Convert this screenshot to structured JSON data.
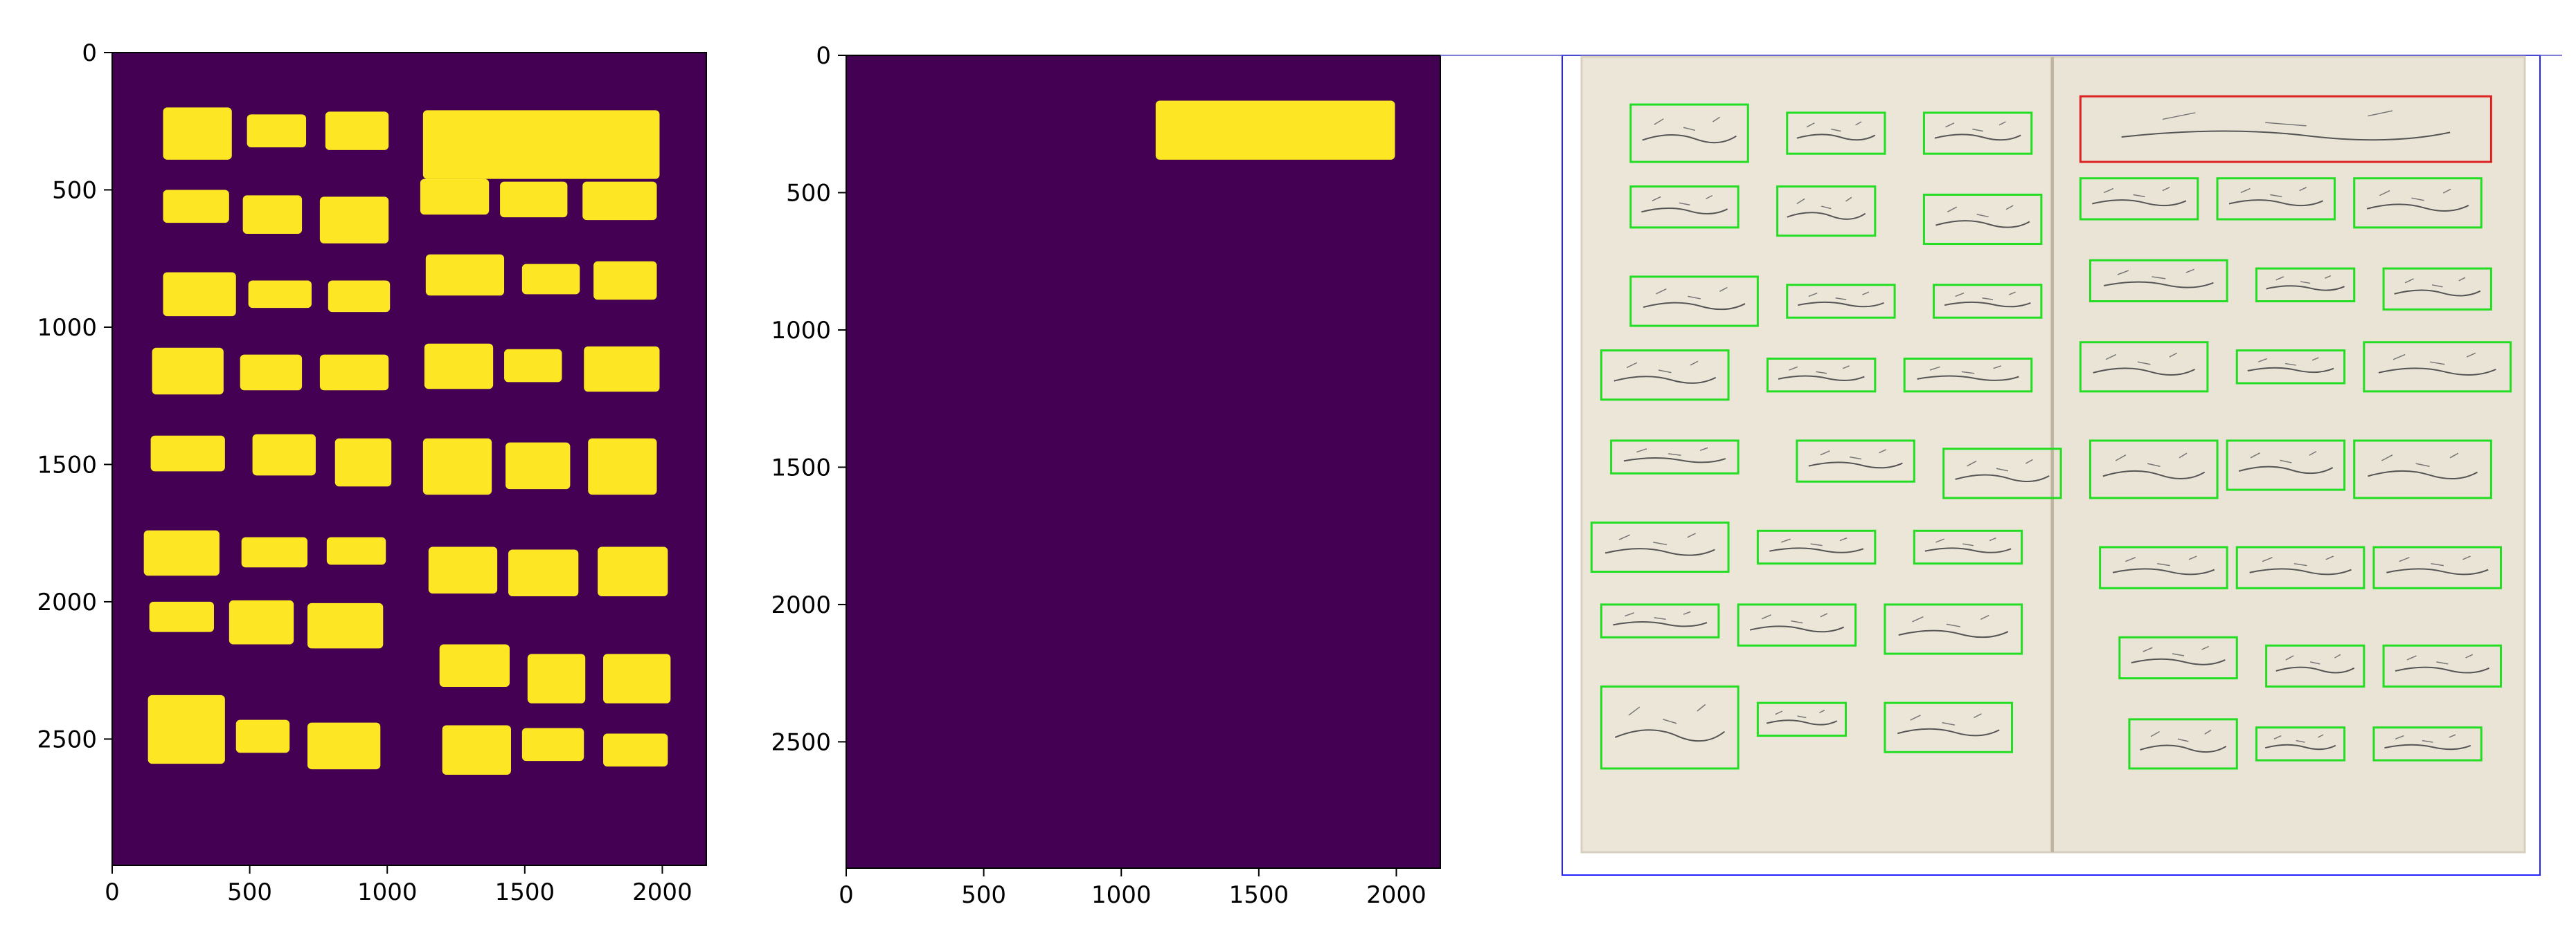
{
  "chart_data": [
    {
      "type": "heatmap",
      "title": "",
      "xlabel": "",
      "ylabel": "",
      "xlim": [
        0,
        2160
      ],
      "ylim": [
        2960,
        0
      ],
      "xticks": [
        0,
        500,
        1000,
        1500,
        2000
      ],
      "yticks": [
        0,
        500,
        1000,
        1500,
        2000,
        2500
      ],
      "xtick_labels": [
        "0",
        "500",
        "1000",
        "1500",
        "2000"
      ],
      "ytick_labels": [
        "0",
        "500",
        "1000",
        "1500",
        "2000",
        "2500"
      ],
      "background_color": "#440154",
      "mask_color": "#fde725",
      "regions": [
        [
          185,
          200,
          435,
          390
        ],
        [
          490,
          225,
          705,
          345
        ],
        [
          775,
          215,
          1005,
          355
        ],
        [
          185,
          500,
          425,
          620
        ],
        [
          475,
          520,
          690,
          660
        ],
        [
          755,
          525,
          1005,
          695
        ],
        [
          1120,
          460,
          1370,
          590
        ],
        [
          1410,
          470,
          1655,
          600
        ],
        [
          1710,
          470,
          1980,
          610
        ],
        [
          185,
          800,
          450,
          960
        ],
        [
          495,
          830,
          725,
          930
        ],
        [
          785,
          830,
          1010,
          945
        ],
        [
          1140,
          735,
          1425,
          885
        ],
        [
          1490,
          770,
          1700,
          880
        ],
        [
          1750,
          760,
          1980,
          900
        ],
        [
          145,
          1075,
          405,
          1245
        ],
        [
          465,
          1100,
          690,
          1230
        ],
        [
          755,
          1100,
          1005,
          1230
        ],
        [
          1135,
          1060,
          1385,
          1225
        ],
        [
          1425,
          1080,
          1635,
          1200
        ],
        [
          1715,
          1070,
          1990,
          1235
        ],
        [
          140,
          1395,
          410,
          1525
        ],
        [
          510,
          1390,
          740,
          1540
        ],
        [
          810,
          1405,
          1015,
          1580
        ],
        [
          1130,
          1405,
          1380,
          1610
        ],
        [
          1430,
          1420,
          1665,
          1590
        ],
        [
          1730,
          1405,
          1980,
          1610
        ],
        [
          115,
          1740,
          390,
          1905
        ],
        [
          470,
          1765,
          710,
          1875
        ],
        [
          780,
          1765,
          995,
          1865
        ],
        [
          1150,
          1800,
          1400,
          1970
        ],
        [
          1440,
          1810,
          1695,
          1980
        ],
        [
          1765,
          1800,
          2020,
          1980
        ],
        [
          135,
          2000,
          370,
          2110
        ],
        [
          425,
          1995,
          660,
          2155
        ],
        [
          710,
          2005,
          985,
          2170
        ],
        [
          1190,
          2155,
          1445,
          2310
        ],
        [
          1510,
          2190,
          1720,
          2370
        ],
        [
          1785,
          2190,
          2030,
          2370
        ],
        [
          130,
          2340,
          410,
          2590
        ],
        [
          450,
          2430,
          645,
          2550
        ],
        [
          710,
          2440,
          975,
          2610
        ],
        [
          1200,
          2450,
          1450,
          2630
        ],
        [
          1490,
          2460,
          1715,
          2580
        ],
        [
          1785,
          2480,
          2020,
          2600
        ],
        [
          1130,
          210,
          1990,
          460
        ]
      ]
    },
    {
      "type": "heatmap",
      "title": "",
      "xlabel": "",
      "ylabel": "",
      "xlim": [
        0,
        2160
      ],
      "ylim": [
        2960,
        0
      ],
      "xticks": [
        0,
        500,
        1000,
        1500,
        2000
      ],
      "yticks": [
        0,
        500,
        1000,
        1500,
        2000,
        2500
      ],
      "xtick_labels": [
        "0",
        "500",
        "1000",
        "1500",
        "2000"
      ],
      "ytick_labels": [
        "0",
        "500",
        "1000",
        "1500",
        "2000",
        "2500"
      ],
      "background_color": "#440154",
      "mask_color": "#fde725",
      "regions": [
        [
          1125,
          165,
          1995,
          380
        ]
      ]
    }
  ],
  "image_panel": {
    "description_colors": {
      "page": "#ece6d8",
      "page_edge": "#d8d0be",
      "frame": "#2222ff",
      "green_box": "#22dd22",
      "red_box": "#dd2222"
    },
    "left_page_boxes": [
      [
        0.07,
        0.06,
        0.19,
        0.13
      ],
      [
        0.23,
        0.07,
        0.33,
        0.12
      ],
      [
        0.37,
        0.07,
        0.48,
        0.12
      ],
      [
        0.07,
        0.16,
        0.18,
        0.21
      ],
      [
        0.22,
        0.16,
        0.32,
        0.22
      ],
      [
        0.37,
        0.17,
        0.49,
        0.23
      ],
      [
        0.07,
        0.27,
        0.2,
        0.33
      ],
      [
        0.23,
        0.28,
        0.34,
        0.32
      ],
      [
        0.38,
        0.28,
        0.49,
        0.32
      ],
      [
        0.04,
        0.36,
        0.17,
        0.42
      ],
      [
        0.21,
        0.37,
        0.32,
        0.41
      ],
      [
        0.35,
        0.37,
        0.48,
        0.41
      ],
      [
        0.05,
        0.47,
        0.18,
        0.51
      ],
      [
        0.24,
        0.47,
        0.36,
        0.52
      ],
      [
        0.39,
        0.48,
        0.51,
        0.54
      ],
      [
        0.03,
        0.57,
        0.17,
        0.63
      ],
      [
        0.2,
        0.58,
        0.32,
        0.62
      ],
      [
        0.36,
        0.58,
        0.47,
        0.62
      ],
      [
        0.04,
        0.67,
        0.16,
        0.71
      ],
      [
        0.18,
        0.67,
        0.3,
        0.72
      ],
      [
        0.33,
        0.67,
        0.47,
        0.73
      ],
      [
        0.04,
        0.77,
        0.18,
        0.87
      ],
      [
        0.2,
        0.79,
        0.29,
        0.83
      ],
      [
        0.33,
        0.79,
        0.46,
        0.85
      ]
    ],
    "right_page_boxes": [
      [
        0.53,
        0.15,
        0.65,
        0.2
      ],
      [
        0.67,
        0.15,
        0.79,
        0.2
      ],
      [
        0.81,
        0.15,
        0.94,
        0.21
      ],
      [
        0.54,
        0.25,
        0.68,
        0.3
      ],
      [
        0.71,
        0.26,
        0.81,
        0.3
      ],
      [
        0.84,
        0.26,
        0.95,
        0.31
      ],
      [
        0.53,
        0.35,
        0.66,
        0.41
      ],
      [
        0.69,
        0.36,
        0.8,
        0.4
      ],
      [
        0.82,
        0.35,
        0.97,
        0.41
      ],
      [
        0.54,
        0.47,
        0.67,
        0.54
      ],
      [
        0.68,
        0.47,
        0.8,
        0.53
      ],
      [
        0.81,
        0.47,
        0.95,
        0.54
      ],
      [
        0.55,
        0.6,
        0.68,
        0.65
      ],
      [
        0.69,
        0.6,
        0.82,
        0.65
      ],
      [
        0.83,
        0.6,
        0.96,
        0.65
      ],
      [
        0.57,
        0.71,
        0.69,
        0.76
      ],
      [
        0.72,
        0.72,
        0.82,
        0.77
      ],
      [
        0.84,
        0.72,
        0.96,
        0.77
      ],
      [
        0.58,
        0.81,
        0.69,
        0.87
      ],
      [
        0.71,
        0.82,
        0.8,
        0.86
      ],
      [
        0.83,
        0.82,
        0.94,
        0.86
      ]
    ],
    "red_box": [
      0.53,
      0.05,
      0.95,
      0.13
    ]
  }
}
